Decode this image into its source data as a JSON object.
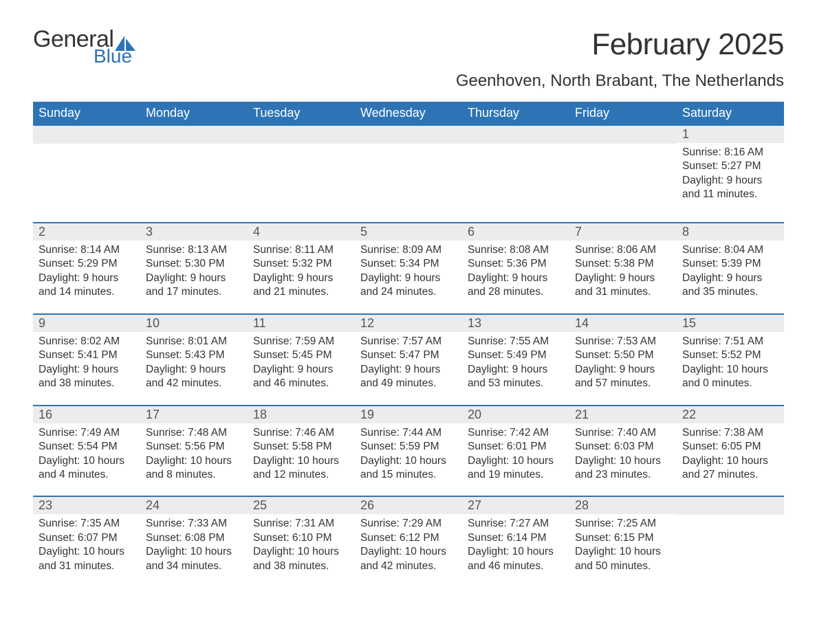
{
  "logo": {
    "general": "General",
    "blue": "Blue",
    "sail_color": "#2e74b5"
  },
  "title": "February 2025",
  "location": "Geenhoven, North Brabant, The Netherlands",
  "colors": {
    "header_bg": "#2e74b5",
    "header_text": "#ffffff",
    "daynum_bg": "#ececec",
    "rule": "#2e74b5",
    "text": "#333333",
    "background": "#ffffff"
  },
  "typography": {
    "title_fontsize": 44,
    "location_fontsize": 24,
    "weekday_fontsize": 18,
    "daynum_fontsize": 18,
    "body_fontsize": 15.5
  },
  "weekdays": [
    "Sunday",
    "Monday",
    "Tuesday",
    "Wednesday",
    "Thursday",
    "Friday",
    "Saturday"
  ],
  "weeks": [
    [
      {
        "empty": true
      },
      {
        "empty": true
      },
      {
        "empty": true
      },
      {
        "empty": true
      },
      {
        "empty": true
      },
      {
        "empty": true
      },
      {
        "day": "1",
        "sunrise": "Sunrise: 8:16 AM",
        "sunset": "Sunset: 5:27 PM",
        "daylight": "Daylight: 9 hours and 11 minutes."
      }
    ],
    [
      {
        "day": "2",
        "sunrise": "Sunrise: 8:14 AM",
        "sunset": "Sunset: 5:29 PM",
        "daylight": "Daylight: 9 hours and 14 minutes."
      },
      {
        "day": "3",
        "sunrise": "Sunrise: 8:13 AM",
        "sunset": "Sunset: 5:30 PM",
        "daylight": "Daylight: 9 hours and 17 minutes."
      },
      {
        "day": "4",
        "sunrise": "Sunrise: 8:11 AM",
        "sunset": "Sunset: 5:32 PM",
        "daylight": "Daylight: 9 hours and 21 minutes."
      },
      {
        "day": "5",
        "sunrise": "Sunrise: 8:09 AM",
        "sunset": "Sunset: 5:34 PM",
        "daylight": "Daylight: 9 hours and 24 minutes."
      },
      {
        "day": "6",
        "sunrise": "Sunrise: 8:08 AM",
        "sunset": "Sunset: 5:36 PM",
        "daylight": "Daylight: 9 hours and 28 minutes."
      },
      {
        "day": "7",
        "sunrise": "Sunrise: 8:06 AM",
        "sunset": "Sunset: 5:38 PM",
        "daylight": "Daylight: 9 hours and 31 minutes."
      },
      {
        "day": "8",
        "sunrise": "Sunrise: 8:04 AM",
        "sunset": "Sunset: 5:39 PM",
        "daylight": "Daylight: 9 hours and 35 minutes."
      }
    ],
    [
      {
        "day": "9",
        "sunrise": "Sunrise: 8:02 AM",
        "sunset": "Sunset: 5:41 PM",
        "daylight": "Daylight: 9 hours and 38 minutes."
      },
      {
        "day": "10",
        "sunrise": "Sunrise: 8:01 AM",
        "sunset": "Sunset: 5:43 PM",
        "daylight": "Daylight: 9 hours and 42 minutes."
      },
      {
        "day": "11",
        "sunrise": "Sunrise: 7:59 AM",
        "sunset": "Sunset: 5:45 PM",
        "daylight": "Daylight: 9 hours and 46 minutes."
      },
      {
        "day": "12",
        "sunrise": "Sunrise: 7:57 AM",
        "sunset": "Sunset: 5:47 PM",
        "daylight": "Daylight: 9 hours and 49 minutes."
      },
      {
        "day": "13",
        "sunrise": "Sunrise: 7:55 AM",
        "sunset": "Sunset: 5:49 PM",
        "daylight": "Daylight: 9 hours and 53 minutes."
      },
      {
        "day": "14",
        "sunrise": "Sunrise: 7:53 AM",
        "sunset": "Sunset: 5:50 PM",
        "daylight": "Daylight: 9 hours and 57 minutes."
      },
      {
        "day": "15",
        "sunrise": "Sunrise: 7:51 AM",
        "sunset": "Sunset: 5:52 PM",
        "daylight": "Daylight: 10 hours and 0 minutes."
      }
    ],
    [
      {
        "day": "16",
        "sunrise": "Sunrise: 7:49 AM",
        "sunset": "Sunset: 5:54 PM",
        "daylight": "Daylight: 10 hours and 4 minutes."
      },
      {
        "day": "17",
        "sunrise": "Sunrise: 7:48 AM",
        "sunset": "Sunset: 5:56 PM",
        "daylight": "Daylight: 10 hours and 8 minutes."
      },
      {
        "day": "18",
        "sunrise": "Sunrise: 7:46 AM",
        "sunset": "Sunset: 5:58 PM",
        "daylight": "Daylight: 10 hours and 12 minutes."
      },
      {
        "day": "19",
        "sunrise": "Sunrise: 7:44 AM",
        "sunset": "Sunset: 5:59 PM",
        "daylight": "Daylight: 10 hours and 15 minutes."
      },
      {
        "day": "20",
        "sunrise": "Sunrise: 7:42 AM",
        "sunset": "Sunset: 6:01 PM",
        "daylight": "Daylight: 10 hours and 19 minutes."
      },
      {
        "day": "21",
        "sunrise": "Sunrise: 7:40 AM",
        "sunset": "Sunset: 6:03 PM",
        "daylight": "Daylight: 10 hours and 23 minutes."
      },
      {
        "day": "22",
        "sunrise": "Sunrise: 7:38 AM",
        "sunset": "Sunset: 6:05 PM",
        "daylight": "Daylight: 10 hours and 27 minutes."
      }
    ],
    [
      {
        "day": "23",
        "sunrise": "Sunrise: 7:35 AM",
        "sunset": "Sunset: 6:07 PM",
        "daylight": "Daylight: 10 hours and 31 minutes."
      },
      {
        "day": "24",
        "sunrise": "Sunrise: 7:33 AM",
        "sunset": "Sunset: 6:08 PM",
        "daylight": "Daylight: 10 hours and 34 minutes."
      },
      {
        "day": "25",
        "sunrise": "Sunrise: 7:31 AM",
        "sunset": "Sunset: 6:10 PM",
        "daylight": "Daylight: 10 hours and 38 minutes."
      },
      {
        "day": "26",
        "sunrise": "Sunrise: 7:29 AM",
        "sunset": "Sunset: 6:12 PM",
        "daylight": "Daylight: 10 hours and 42 minutes."
      },
      {
        "day": "27",
        "sunrise": "Sunrise: 7:27 AM",
        "sunset": "Sunset: 6:14 PM",
        "daylight": "Daylight: 10 hours and 46 minutes."
      },
      {
        "day": "28",
        "sunrise": "Sunrise: 7:25 AM",
        "sunset": "Sunset: 6:15 PM",
        "daylight": "Daylight: 10 hours and 50 minutes."
      },
      {
        "empty": true
      }
    ]
  ]
}
